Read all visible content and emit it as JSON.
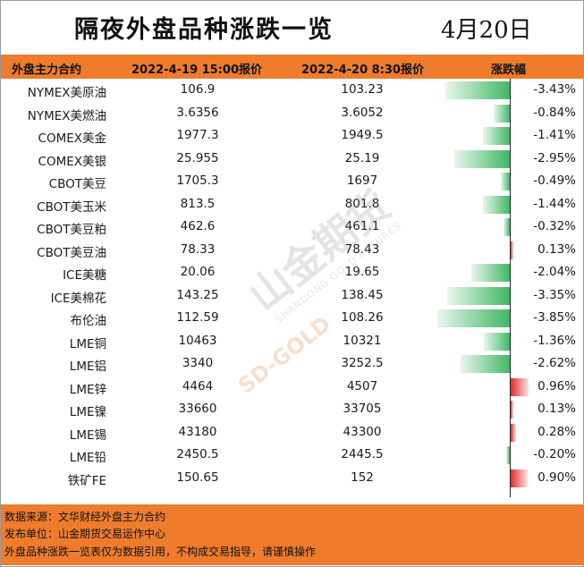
{
  "title": "隔夜外盘品种涨跌一览",
  "date": "4月20日",
  "table": {
    "headers": [
      "外盘主力合约",
      "2022-4-19 15:00报价",
      "2022-4-20 8:30报价",
      "涨跌幅"
    ]
  },
  "chart_data": {
    "type": "table",
    "columns": [
      "外盘主力合约",
      "2022-4-19 15:00报价",
      "2022-4-20 8:30报价",
      "涨跌幅"
    ],
    "rows": [
      {
        "name": "NYMEX美原油",
        "p1": "106.9",
        "p2": "103.23",
        "change_label": "-3.43%",
        "change": -3.43
      },
      {
        "name": "NYMEX美燃油",
        "p1": "3.6356",
        "p2": "3.6052",
        "change_label": "-0.84%",
        "change": -0.84
      },
      {
        "name": "COMEX美金",
        "p1": "1977.3",
        "p2": "1949.5",
        "change_label": "-1.41%",
        "change": -1.41
      },
      {
        "name": "COMEX美银",
        "p1": "25.955",
        "p2": "25.19",
        "change_label": "-2.95%",
        "change": -2.95
      },
      {
        "name": "CBOT美豆",
        "p1": "1705.3",
        "p2": "1697",
        "change_label": "-0.49%",
        "change": -0.49
      },
      {
        "name": "CBOT美玉米",
        "p1": "813.5",
        "p2": "801.8",
        "change_label": "-1.44%",
        "change": -1.44
      },
      {
        "name": "CBOT美豆粕",
        "p1": "462.6",
        "p2": "461.1",
        "change_label": "-0.32%",
        "change": -0.32
      },
      {
        "name": "CBOT美豆油",
        "p1": "78.33",
        "p2": "78.43",
        "change_label": "0.13%",
        "change": 0.13
      },
      {
        "name": "ICE美糖",
        "p1": "20.06",
        "p2": "19.65",
        "change_label": "-2.04%",
        "change": -2.04
      },
      {
        "name": "ICE美棉花",
        "p1": "143.25",
        "p2": "138.45",
        "change_label": "-3.35%",
        "change": -3.35
      },
      {
        "name": "布伦油",
        "p1": "112.59",
        "p2": "108.26",
        "change_label": "-3.85%",
        "change": -3.85
      },
      {
        "name": "LME铜",
        "p1": "10463",
        "p2": "10321",
        "change_label": "-1.36%",
        "change": -1.36
      },
      {
        "name": "LME铝",
        "p1": "3340",
        "p2": "3252.5",
        "change_label": "-2.62%",
        "change": -2.62
      },
      {
        "name": "LME锌",
        "p1": "4464",
        "p2": "4507",
        "change_label": "0.96%",
        "change": 0.96
      },
      {
        "name": "LME镍",
        "p1": "33660",
        "p2": "33705",
        "change_label": "0.13%",
        "change": 0.13
      },
      {
        "name": "LME锡",
        "p1": "43180",
        "p2": "43300",
        "change_label": "0.28%",
        "change": 0.28
      },
      {
        "name": "LME铅",
        "p1": "2450.5",
        "p2": "2445.5",
        "change_label": "-0.20%",
        "change": -0.2
      },
      {
        "name": "铁矿FE",
        "p1": "150.65",
        "p2": "152",
        "change_label": "0.90%",
        "change": 0.9
      }
    ],
    "bar_colors": {
      "negative": "#3fb865",
      "positive": "#e52a2a"
    }
  },
  "watermark": {
    "brand": "山金期货",
    "sub": "SHANDONG GOLD FUTURES",
    "logo_text": "SD-GOLD"
  },
  "footer": {
    "source": "数据来源：文华财经外盘主力合约",
    "publisher": "发布单位：山金期货交易运作中心",
    "disclaimer": "外盘品种涨跌一览表仅为数据引用，不构成交易指导，请谨慎操作"
  }
}
